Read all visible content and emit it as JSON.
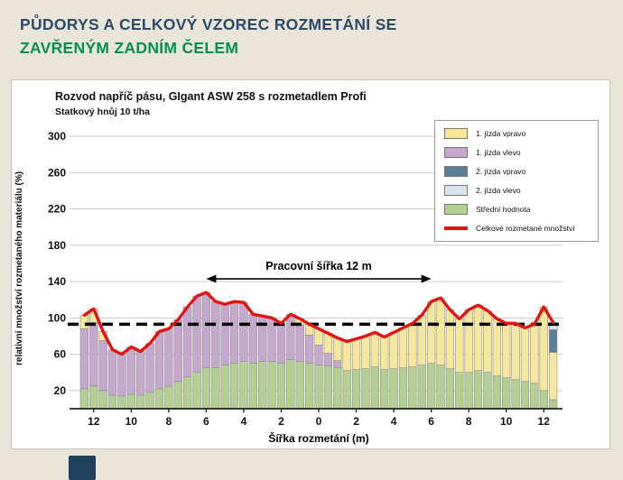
{
  "page": {
    "header_line1": "PŮDORYS A CELKOVÝ VZOREC ROZMETÁNÍ SE",
    "header_line2": "ZAVŘENÝM ZADNÍM ČELEM",
    "colors": {
      "header_primary": "#2c4a68",
      "header_accent": "#009051",
      "background": "#e9e6d9"
    }
  },
  "chart": {
    "title": "Rozvod napříč pásu, GIgant ASW 258 s rozmetadlem Profi",
    "subtitle": "Statkový hnůj 10 t/ha",
    "ylabel": "relativní množství rozmetaného materiálu (%)",
    "xlabel": "Šířka rozmetání (m)"
  },
  "legend": {
    "items": [
      {
        "label": "1. jízda vpravo",
        "color": "#f6e79b",
        "type": "box"
      },
      {
        "label": "1. jízda vlevo",
        "color": "#c6a8ce",
        "type": "box"
      },
      {
        "label": "2. jízda vpravo",
        "color": "#5a7f96",
        "type": "box"
      },
      {
        "label": "2. jízda vlevo",
        "color": "#d9e4ed",
        "type": "box"
      },
      {
        "label": "Střední hodnota",
        "color": "#b4cf92",
        "type": "box"
      },
      {
        "label": "Celkové rozmetané množství",
        "color": "#e11414",
        "type": "line"
      }
    ]
  },
  "chart_data": {
    "type": "bar",
    "stacked": true,
    "title": "Rozvod napříč pásu, GIgant ASW 258 s rozmetadlem Profi",
    "subtitle": "Statkový hnůj 10 t/ha",
    "xlabel": "Šířka rozmetání (m)",
    "ylabel": "relativní množství rozmetaného materiálu (%)",
    "ylim": [
      0,
      300
    ],
    "xlim": [
      -13,
      13
    ],
    "yticks": [
      20,
      60,
      100,
      140,
      180,
      220,
      260,
      300
    ],
    "xticks": [
      -12,
      -10,
      -8,
      -6,
      -4,
      -2,
      0,
      2,
      4,
      6,
      8,
      10,
      12
    ],
    "xtick_labels": [
      "12",
      "10",
      "8",
      "6",
      "4",
      "2",
      "0",
      "2",
      "4",
      "6",
      "8",
      "10",
      "12"
    ],
    "grid": true,
    "legend_position": "top-right",
    "x": [
      -12.5,
      -12,
      -11.5,
      -11,
      -10.5,
      -10,
      -9.5,
      -9,
      -8.5,
      -8,
      -7.5,
      -7,
      -6.5,
      -6,
      -5.5,
      -5,
      -4.5,
      -4,
      -3.5,
      -3,
      -2.5,
      -2,
      -1.5,
      -1,
      -0.5,
      0,
      0.5,
      1,
      1.5,
      2,
      2.5,
      3,
      3.5,
      4,
      4.5,
      5,
      5.5,
      6,
      6.5,
      7,
      7.5,
      8,
      8.5,
      9,
      9.5,
      10,
      10.5,
      11,
      11.5,
      12,
      12.5
    ],
    "series": [
      {
        "name": "Střední hodnota",
        "color": "#b4cf92",
        "values": [
          22,
          25,
          20,
          15,
          14,
          16,
          15,
          18,
          22,
          25,
          30,
          35,
          40,
          45,
          45,
          48,
          50,
          52,
          50,
          52,
          52,
          50,
          54,
          52,
          50,
          48,
          47,
          45,
          42,
          43,
          44,
          46,
          43,
          44,
          45,
          46,
          48,
          50,
          48,
          44,
          40,
          40,
          42,
          40,
          36,
          34,
          32,
          30,
          28,
          20,
          10
        ]
      },
      {
        "name": "1. jízda vlevo",
        "color": "#c6a8ce",
        "values": [
          66,
          70,
          55,
          50,
          46,
          52,
          48,
          54,
          63,
          63,
          68,
          77,
          84,
          83,
          73,
          67,
          68,
          65,
          54,
          50,
          48,
          44,
          50,
          40,
          31,
          22,
          14,
          8,
          0,
          0,
          0,
          0,
          0,
          0,
          0,
          0,
          0,
          0,
          0,
          0,
          0,
          0,
          0,
          0,
          0,
          0,
          0,
          0,
          0,
          0,
          0
        ]
      },
      {
        "name": "1. jízda vpravo",
        "color": "#f6e79b",
        "values": [
          15,
          15,
          10,
          0,
          0,
          0,
          0,
          0,
          0,
          0,
          0,
          0,
          0,
          0,
          0,
          0,
          0,
          0,
          0,
          0,
          0,
          0,
          0,
          7,
          12,
          18,
          22,
          25,
          32,
          34,
          36,
          38,
          36,
          40,
          44,
          48,
          55,
          68,
          74,
          65,
          59,
          69,
          72,
          68,
          63,
          60,
          62,
          59,
          65,
          92,
          52
        ]
      },
      {
        "name": "2. jízda vpravo",
        "color": "#5a7f96",
        "values": [
          0,
          0,
          0,
          0,
          0,
          0,
          0,
          0,
          0,
          0,
          0,
          0,
          0,
          0,
          0,
          0,
          0,
          0,
          0,
          0,
          0,
          0,
          0,
          0,
          0,
          0,
          0,
          0,
          0,
          0,
          0,
          0,
          0,
          0,
          0,
          0,
          0,
          0,
          0,
          0,
          0,
          0,
          0,
          0,
          0,
          0,
          0,
          0,
          0,
          0,
          25
        ]
      },
      {
        "name": "2. jízda vlevo",
        "color": "#d9e4ed",
        "values": [
          0,
          0,
          0,
          0,
          0,
          0,
          0,
          0,
          0,
          0,
          0,
          0,
          0,
          0,
          0,
          0,
          0,
          0,
          0,
          0,
          0,
          0,
          0,
          0,
          0,
          0,
          0,
          0,
          0,
          0,
          0,
          0,
          0,
          0,
          0,
          0,
          0,
          0,
          0,
          0,
          0,
          0,
          0,
          0,
          0,
          0,
          0,
          0,
          0,
          0,
          8
        ]
      }
    ],
    "total_line": {
      "name": "Celkové rozmetané množství",
      "color": "#e11414",
      "derived": "sum of stacked series"
    },
    "reference_line": {
      "value": 93,
      "style": "dashed",
      "color": "#000000"
    },
    "annotation": {
      "text": "Pracovní šířka 12 m",
      "x_from": -6,
      "x_to": 6,
      "y": 143
    }
  }
}
